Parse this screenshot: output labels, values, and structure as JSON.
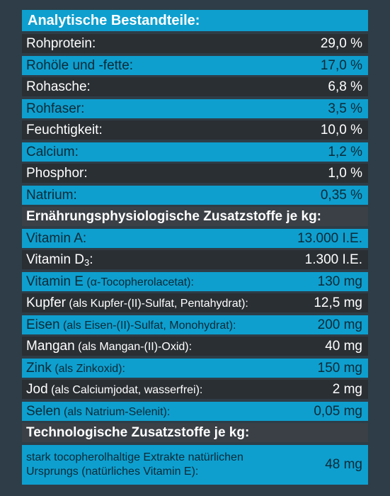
{
  "title": "Analytische Bestandteile:",
  "analytic": [
    {
      "name": "Rohprotein:",
      "value": "29,0 %"
    },
    {
      "name": "Rohöle und -fette:",
      "value": "17,0 %"
    },
    {
      "name": "Rohasche:",
      "value": "6,8 %"
    },
    {
      "name": "Rohfaser:",
      "value": "3,5 %"
    },
    {
      "name": "Feuchtigkeit:",
      "value": "10,0 %"
    },
    {
      "name": "Calcium:",
      "value": "1,2 %"
    },
    {
      "name": "Phosphor:",
      "value": "1,0 %"
    },
    {
      "name": "Natrium:",
      "value": "0,35 %"
    }
  ],
  "nutrition_header": "Ernährungsphysiologische Zusatzstoffe je kg:",
  "nutrition": [
    {
      "name": "Vitamin A:",
      "detail": "",
      "value": "13.000 I.E."
    },
    {
      "name": "Vitamin D",
      "sub": "3",
      "detail": ":",
      "value": "1.300 I.E."
    },
    {
      "name": "Vitamin E",
      "detail": " (α-Tocopherolacetat):",
      "value": "130 mg"
    },
    {
      "name": "Kupfer",
      "detail": " (als Kupfer-(II)-Sulfat, Pentahydrat):",
      "value": "12,5 mg"
    },
    {
      "name": "Eisen",
      "detail": " (als Eisen-(II)-Sulfat, Monohydrat):",
      "value": "200 mg"
    },
    {
      "name": "Mangan",
      "detail": " (als Mangan-(II)-Oxid):",
      "value": "40 mg"
    },
    {
      "name": "Zink",
      "detail": " (als Zinkoxid):",
      "value": "150 mg"
    },
    {
      "name": "Jod",
      "detail": " (als Calciumjodat, wasserfrei):",
      "value": "2 mg"
    },
    {
      "name": "Selen",
      "detail": " (als Natrium-Selenit):",
      "value": "0,05 mg"
    }
  ],
  "tech_header": "Technologische Zusatzstoffe je kg:",
  "tech": {
    "line1": "stark tocopherolhaltige Extrakte natürlichen",
    "line2": "Ursprungs (natürliches Vitamin E):",
    "value": "48 mg"
  }
}
